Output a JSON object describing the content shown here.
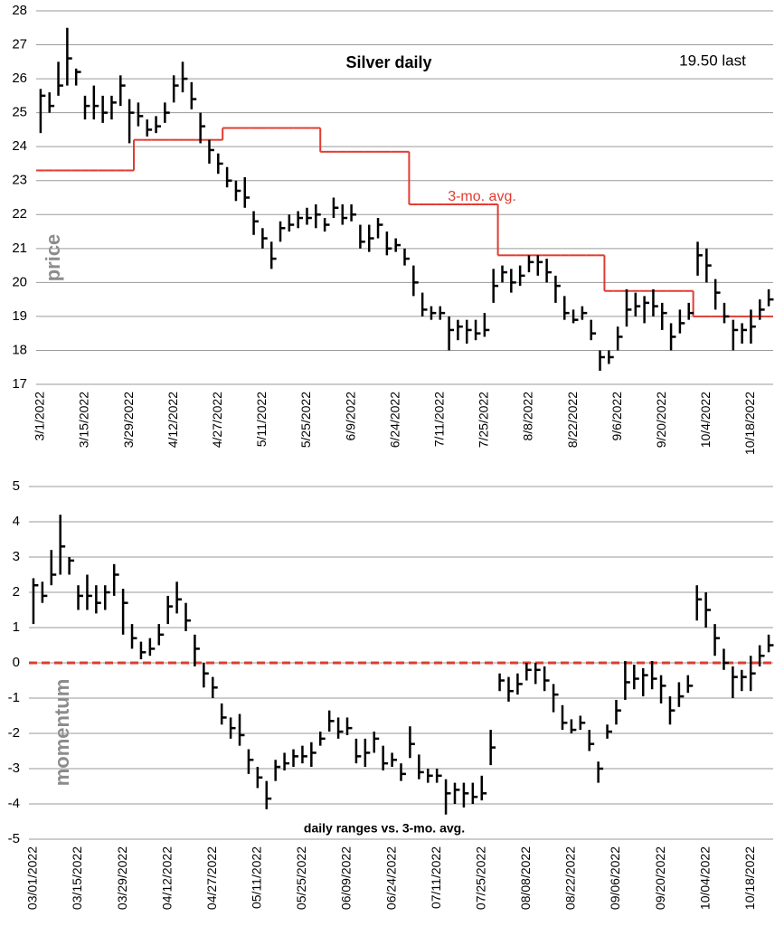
{
  "chart_data": [
    {
      "type": "ohlc",
      "title": "Silver daily",
      "annotation": "19.50 last",
      "y_label": "price",
      "color": "#000000",
      "categories": [
        "3/1/2022",
        null,
        null,
        null,
        null,
        "3/15/2022",
        null,
        null,
        null,
        null,
        "3/29/2022",
        null,
        null,
        null,
        null,
        "4/12/2022",
        null,
        null,
        null,
        null,
        "4/27/2022",
        null,
        null,
        null,
        null,
        "5/11/2022",
        null,
        null,
        null,
        null,
        "5/25/2022",
        null,
        null,
        null,
        null,
        "6/9/2022",
        null,
        null,
        null,
        null,
        "6/24/2022",
        null,
        null,
        null,
        null,
        "7/11/2022",
        null,
        null,
        null,
        null,
        "7/25/2022",
        null,
        null,
        null,
        null,
        "8/8/2022",
        null,
        null,
        null,
        null,
        "8/22/2022",
        null,
        null,
        null,
        null,
        "9/6/2022",
        null,
        null,
        null,
        null,
        "9/20/2022",
        null,
        null,
        null,
        null,
        "10/4/2022",
        null,
        null,
        null,
        null,
        "10/18/2022",
        null,
        null
      ],
      "high": [
        25.7,
        25.6,
        26.5,
        27.5,
        26.3,
        25.5,
        25.8,
        25.5,
        25.5,
        26.1,
        25.4,
        25.3,
        24.8,
        24.9,
        25.3,
        26.1,
        26.5,
        25.9,
        25.0,
        24.2,
        23.8,
        23.4,
        23.0,
        23.1,
        22.1,
        21.6,
        21.2,
        21.8,
        22.0,
        22.1,
        22.2,
        22.3,
        21.9,
        22.5,
        22.3,
        22.3,
        21.7,
        21.7,
        21.9,
        21.5,
        21.3,
        21.0,
        20.5,
        19.7,
        19.3,
        19.3,
        19.0,
        18.9,
        18.9,
        18.9,
        19.1,
        20.4,
        20.5,
        20.4,
        20.5,
        20.8,
        20.8,
        20.7,
        20.2,
        19.6,
        19.2,
        19.3,
        18.9,
        18.0,
        18.0,
        18.7,
        19.8,
        19.7,
        19.6,
        19.8,
        19.4,
        18.8,
        19.2,
        19.4,
        21.2,
        21.0,
        20.1,
        19.4,
        18.9,
        18.8,
        19.2,
        19.5,
        19.8
      ],
      "low": [
        24.4,
        25.0,
        25.5,
        25.8,
        25.8,
        24.8,
        24.8,
        24.7,
        24.8,
        25.2,
        24.1,
        24.6,
        24.3,
        24.4,
        24.7,
        25.3,
        25.6,
        25.1,
        24.1,
        23.5,
        23.2,
        22.8,
        22.4,
        22.2,
        21.4,
        21.0,
        20.4,
        21.2,
        21.5,
        21.6,
        21.7,
        21.6,
        21.5,
        21.9,
        21.7,
        21.8,
        21.0,
        20.9,
        21.3,
        20.8,
        20.9,
        20.5,
        19.6,
        19.0,
        18.9,
        18.9,
        18.0,
        18.3,
        18.2,
        18.3,
        18.4,
        19.4,
        20.0,
        19.7,
        19.9,
        20.3,
        20.2,
        20.0,
        19.4,
        18.9,
        18.8,
        18.9,
        18.3,
        17.4,
        17.6,
        18.0,
        18.7,
        19.0,
        18.8,
        19.0,
        18.6,
        18.0,
        18.5,
        18.9,
        20.2,
        20.0,
        19.2,
        18.8,
        18.0,
        18.2,
        18.2,
        18.9,
        19.3
      ],
      "close": [
        25.5,
        25.2,
        25.8,
        26.6,
        26.2,
        25.2,
        25.2,
        25.0,
        25.3,
        25.8,
        25.0,
        24.9,
        24.5,
        24.6,
        25.0,
        25.8,
        26.0,
        25.4,
        24.6,
        23.9,
        23.5,
        23.0,
        22.7,
        22.5,
        21.8,
        21.3,
        20.7,
        21.6,
        21.7,
        21.9,
        21.9,
        22.0,
        21.7,
        22.2,
        21.9,
        22.0,
        21.2,
        21.3,
        21.7,
        21.0,
        21.1,
        20.7,
        20.0,
        19.2,
        19.1,
        19.1,
        18.6,
        18.7,
        18.6,
        18.5,
        18.6,
        19.9,
        20.3,
        20.0,
        20.2,
        20.6,
        20.6,
        20.3,
        19.9,
        19.1,
        18.9,
        19.1,
        18.5,
        17.8,
        17.8,
        18.4,
        19.2,
        19.3,
        19.4,
        19.3,
        19.1,
        18.4,
        18.8,
        19.1,
        20.8,
        20.5,
        19.7,
        19.0,
        18.6,
        18.6,
        18.7,
        19.2,
        19.5
      ],
      "average": {
        "name": "3-mo. avg.",
        "color": "#e03c31",
        "values": [
          23.3,
          23.3,
          23.3,
          23.3,
          23.3,
          23.3,
          23.3,
          23.3,
          23.3,
          23.3,
          23.3,
          24.2,
          24.2,
          24.2,
          24.2,
          24.2,
          24.2,
          24.2,
          24.2,
          24.2,
          24.2,
          24.55,
          24.55,
          24.55,
          24.55,
          24.55,
          24.55,
          24.55,
          24.55,
          24.55,
          24.55,
          24.55,
          23.85,
          23.85,
          23.85,
          23.85,
          23.85,
          23.85,
          23.85,
          23.85,
          23.85,
          23.85,
          22.3,
          22.3,
          22.3,
          22.3,
          22.3,
          22.3,
          22.3,
          22.3,
          22.3,
          22.3,
          20.8,
          20.8,
          20.8,
          20.8,
          20.8,
          20.8,
          20.8,
          20.8,
          20.8,
          20.8,
          20.8,
          20.8,
          19.75,
          19.75,
          19.75,
          19.75,
          19.75,
          19.75,
          19.75,
          19.75,
          19.75,
          19.75,
          19.0,
          19.0,
          19.0,
          19.0,
          19.0,
          19.0,
          19.0,
          19.0,
          19.0
        ]
      },
      "ylim": [
        17,
        28
      ],
      "yticks": [
        17,
        18,
        19,
        20,
        21,
        22,
        23,
        24,
        25,
        26,
        27,
        28
      ],
      "grid": true
    },
    {
      "type": "ohlc",
      "caption": "daily ranges vs. 3-mo. avg.",
      "y_label": "momentum",
      "color": "#000000",
      "categories": [
        "03/01/2022",
        null,
        null,
        null,
        null,
        "03/15/2022",
        null,
        null,
        null,
        null,
        "03/29/2022",
        null,
        null,
        null,
        null,
        "04/12/2022",
        null,
        null,
        null,
        null,
        "04/27/2022",
        null,
        null,
        null,
        null,
        "05/11/2022",
        null,
        null,
        null,
        null,
        "05/25/2022",
        null,
        null,
        null,
        null,
        "06/09/2022",
        null,
        null,
        null,
        null,
        "06/24/2022",
        null,
        null,
        null,
        null,
        "07/11/2022",
        null,
        null,
        null,
        null,
        "07/25/2022",
        null,
        null,
        null,
        null,
        "08/08/2022",
        null,
        null,
        null,
        null,
        "08/22/2022",
        null,
        null,
        null,
        null,
        "09/06/2022",
        null,
        null,
        null,
        null,
        "09/20/2022",
        null,
        null,
        null,
        null,
        "10/04/2022",
        null,
        null,
        null,
        null,
        "10/18/2022",
        null,
        null
      ],
      "high": [
        2.4,
        2.3,
        3.2,
        4.2,
        3.0,
        2.2,
        2.5,
        2.2,
        2.2,
        2.8,
        2.1,
        1.1,
        0.6,
        0.7,
        1.1,
        1.9,
        2.3,
        1.7,
        0.8,
        0.0,
        -0.4,
        -1.15,
        -1.55,
        -1.45,
        -2.45,
        -2.95,
        -3.35,
        -2.75,
        -2.55,
        -2.45,
        -2.35,
        -2.25,
        -1.95,
        -1.35,
        -1.55,
        -1.55,
        -2.15,
        -2.15,
        -1.95,
        -2.35,
        -2.55,
        -2.85,
        -1.8,
        -2.6,
        -3.0,
        -3.0,
        -3.3,
        -3.4,
        -3.4,
        -3.4,
        -3.2,
        -1.9,
        -0.3,
        -0.4,
        -0.3,
        0.0,
        0.0,
        -0.1,
        -0.6,
        -1.2,
        -1.6,
        -1.5,
        -1.9,
        -2.8,
        -1.75,
        -1.05,
        0.05,
        -0.05,
        -0.15,
        0.05,
        -0.35,
        -0.95,
        -0.55,
        -0.35,
        2.2,
        2.0,
        1.1,
        0.4,
        -0.1,
        -0.2,
        0.2,
        0.5,
        0.8
      ],
      "low": [
        1.1,
        1.7,
        2.2,
        2.5,
        2.5,
        1.5,
        1.5,
        1.4,
        1.5,
        1.9,
        0.8,
        0.4,
        0.1,
        0.2,
        0.5,
        1.1,
        1.4,
        0.9,
        -0.1,
        -0.7,
        -1.0,
        -1.75,
        -2.15,
        -2.35,
        -3.15,
        -3.55,
        -4.15,
        -3.35,
        -3.05,
        -2.95,
        -2.85,
        -2.95,
        -2.35,
        -1.95,
        -2.15,
        -2.05,
        -2.85,
        -2.95,
        -2.55,
        -3.05,
        -2.95,
        -3.35,
        -2.7,
        -3.3,
        -3.4,
        -3.4,
        -4.3,
        -4.0,
        -4.1,
        -4.0,
        -3.9,
        -2.9,
        -0.8,
        -1.1,
        -0.9,
        -0.5,
        -0.6,
        -0.8,
        -1.4,
        -1.9,
        -2.0,
        -1.9,
        -2.5,
        -3.4,
        -2.15,
        -1.75,
        -1.05,
        -0.75,
        -0.95,
        -0.75,
        -1.15,
        -1.75,
        -1.25,
        -0.85,
        1.2,
        1.0,
        0.2,
        -0.2,
        -1.0,
        -0.8,
        -0.8,
        -0.1,
        0.3
      ],
      "close": [
        2.2,
        1.9,
        2.5,
        3.3,
        2.9,
        1.9,
        1.9,
        1.7,
        2.0,
        2.5,
        1.7,
        0.7,
        0.3,
        0.4,
        0.8,
        1.6,
        1.8,
        1.2,
        0.4,
        -0.3,
        -0.7,
        -1.55,
        -1.85,
        -2.05,
        -2.75,
        -3.25,
        -3.85,
        -2.95,
        -2.85,
        -2.65,
        -2.65,
        -2.55,
        -2.15,
        -1.65,
        -1.95,
        -1.85,
        -2.65,
        -2.55,
        -2.15,
        -2.85,
        -2.75,
        -3.15,
        -2.3,
        -3.1,
        -3.2,
        -3.2,
        -3.7,
        -3.6,
        -3.7,
        -3.8,
        -3.7,
        -2.4,
        -0.5,
        -0.8,
        -0.6,
        -0.2,
        -0.2,
        -0.5,
        -0.9,
        -1.7,
        -1.9,
        -1.7,
        -2.3,
        -3.0,
        -1.95,
        -1.35,
        -0.55,
        -0.45,
        -0.35,
        -0.45,
        -0.65,
        -1.35,
        -0.95,
        -0.65,
        1.8,
        1.5,
        0.7,
        0.0,
        -0.4,
        -0.4,
        -0.3,
        0.2,
        0.5
      ],
      "reference_line": {
        "value": 0,
        "color": "#e03c31"
      },
      "ylim": [
        -5,
        5
      ],
      "yticks": [
        -5,
        -4,
        -3,
        -2,
        -1,
        0,
        1,
        2,
        3,
        4,
        5
      ],
      "grid": true
    }
  ]
}
